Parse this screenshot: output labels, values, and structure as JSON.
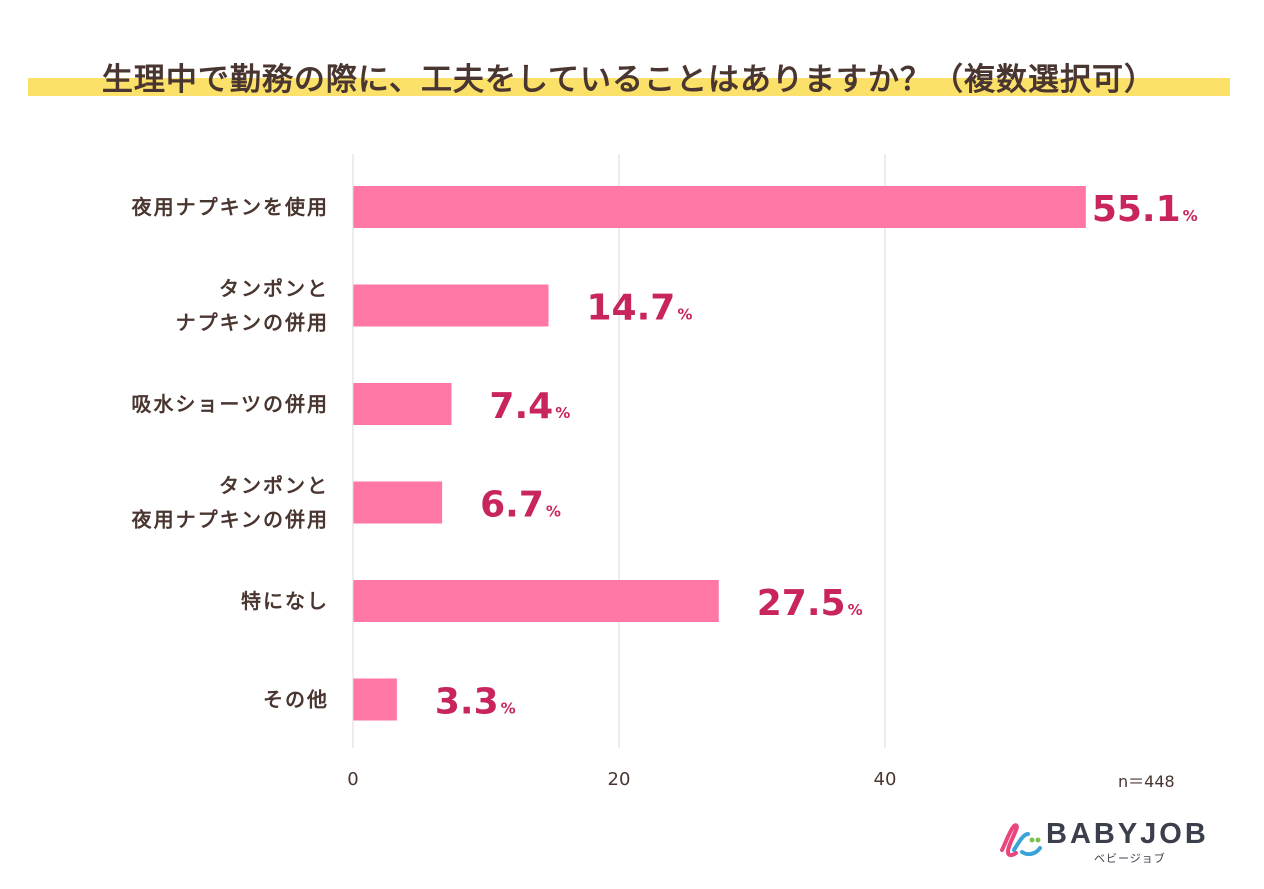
{
  "title": "生理中で勤務の際に、工夫をしていることはありますか？（複数選択可）",
  "sample_note": "n＝448",
  "brand": {
    "name": "BABYJOB",
    "kana": "ベビージョブ"
  },
  "colors": {
    "bar": "#ff77a4",
    "value_text": "#c8255f",
    "grid": "#d9d9d9",
    "text": "#4a3630",
    "highlight": "#fbe06a"
  },
  "chart_data": {
    "type": "bar",
    "orientation": "horizontal",
    "title": "生理中で勤務の際に、工夫をしていることはありますか？（複数選択可）",
    "categories": [
      [
        "夜用ナプキンを使用"
      ],
      [
        "タンポンと",
        "ナプキンの併用"
      ],
      [
        "吸水ショーツの併用"
      ],
      [
        "タンポンと",
        "夜用ナプキンの併用"
      ],
      [
        "特になし"
      ],
      [
        "その他"
      ]
    ],
    "values": [
      55.1,
      14.7,
      7.4,
      6.7,
      27.5,
      3.3
    ],
    "value_labels": [
      "55.1",
      "14.7",
      "7.4",
      "6.7",
      "27.5",
      "3.3"
    ],
    "unit": "%",
    "xlim": [
      0,
      60
    ],
    "xticks": [
      0,
      20,
      40
    ],
    "grid": true,
    "xlabel": "",
    "ylabel": ""
  }
}
